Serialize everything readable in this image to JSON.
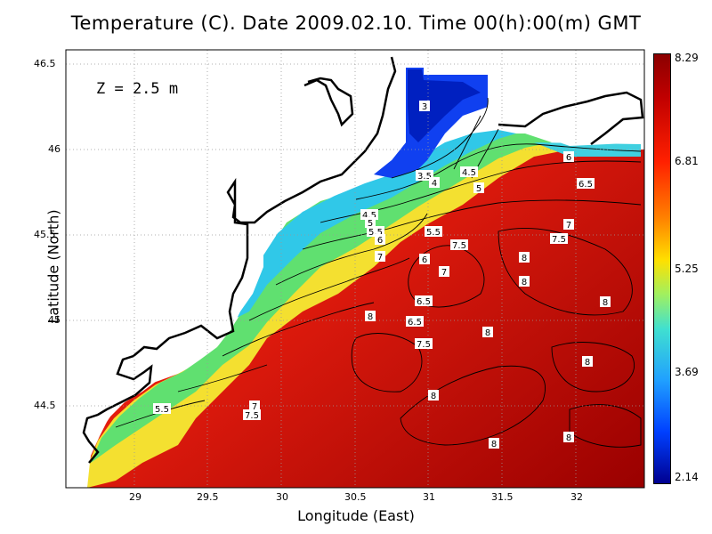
{
  "title": "Temperature (C). Date 2009.02.10. Time 00(h):00(m) GMT",
  "depth_label": "Z = 2.5 m",
  "x_axis": {
    "label": "Longitude (East)",
    "ticks": [
      "29",
      "29.5",
      "30",
      "30.5",
      "31",
      "31.5",
      "32"
    ]
  },
  "y_axis": {
    "label": "Latitude (North)",
    "ticks": [
      "46.5",
      "46",
      "45.5",
      "45",
      "44.5"
    ]
  },
  "colorbar": {
    "labels": [
      "8.29",
      "6.81",
      "5.25",
      "3.69",
      "2.14"
    ],
    "colors": {
      "max": "#8b0000",
      "high": "#ff2000",
      "mid_high": "#ff8000",
      "mid": "#ffe000",
      "mid_low": "#40e0d0",
      "low": "#0040ff",
      "min": "#000090"
    }
  },
  "contour_labels": [
    "3",
    "3.5",
    "4",
    "4.5",
    "5",
    "4.5",
    "5",
    "5.5",
    "6",
    "5.5",
    "6",
    "6.5",
    "7",
    "7",
    "7.5",
    "7.5",
    "8",
    "8",
    "8",
    "6",
    "7",
    "6.5",
    "8",
    "6.5",
    "7.5",
    "8",
    "8",
    "8",
    "8",
    "8",
    "7",
    "7.5",
    "5.5"
  ],
  "chart_data": {
    "type": "heatmap",
    "title": "Temperature (C). Date 2009.02.10. Time 00(h):00(m) GMT",
    "xlabel": "Longitude (East)",
    "ylabel": "Latitude (North)",
    "xlim": [
      28.5,
      32.5
    ],
    "ylim": [
      44.07,
      46.55
    ],
    "colorbar_range": [
      2.14,
      8.29
    ]
  }
}
